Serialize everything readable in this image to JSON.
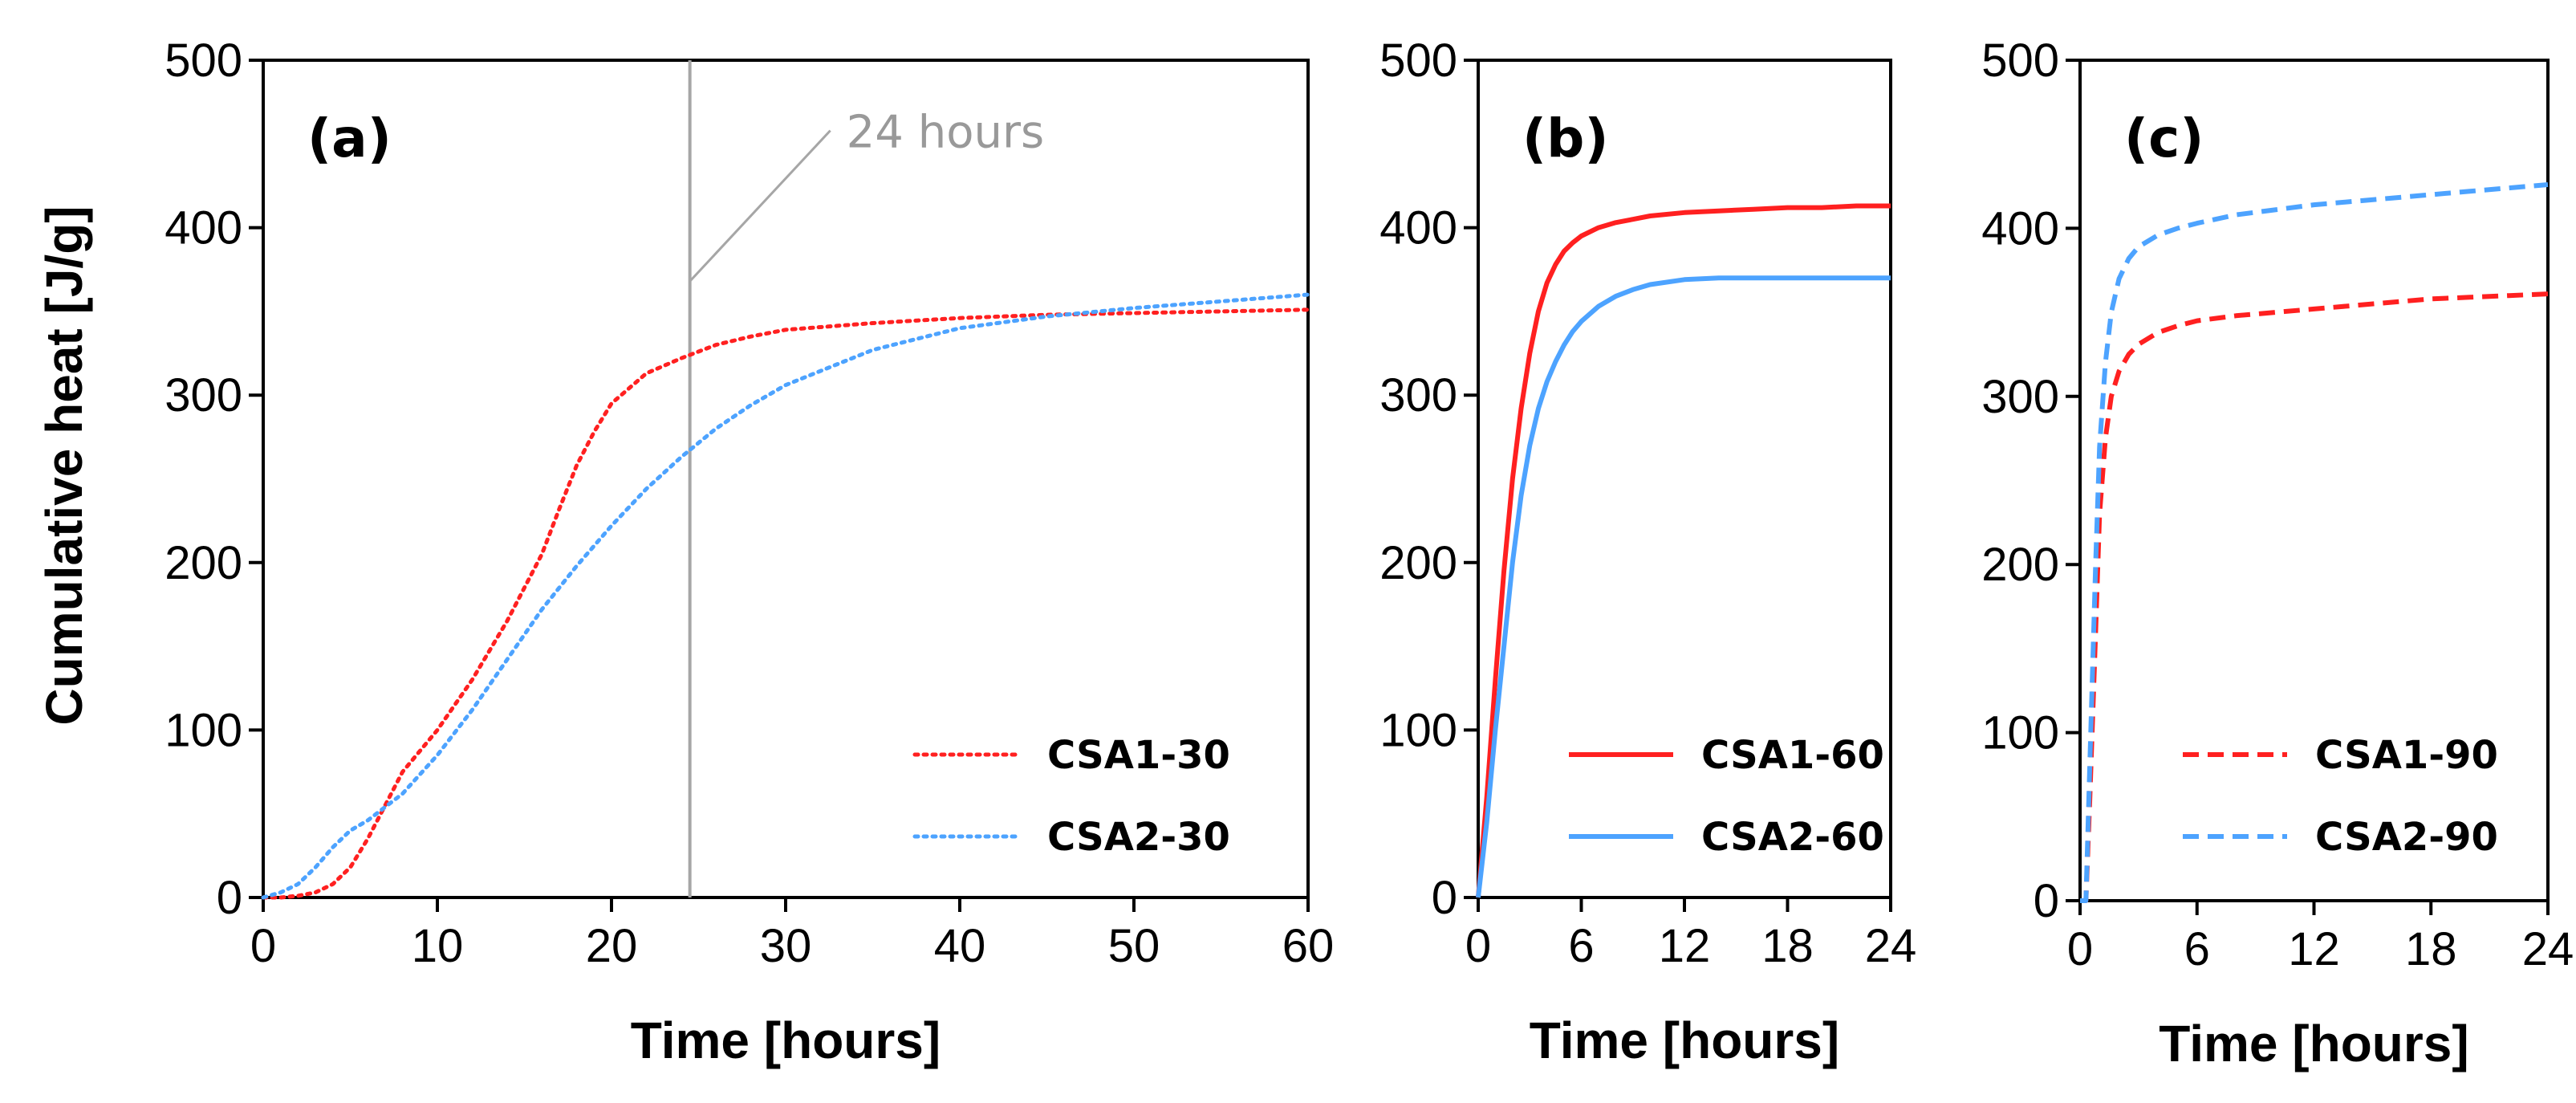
{
  "figure": {
    "ylabel": "Cumulative heat [J/g]"
  },
  "chart_data": [
    {
      "panel": "(a)",
      "type": "line",
      "xlabel": "Time [hours]",
      "ylabel": "Cumulative heat [J/g]",
      "xlim": [
        0,
        60
      ],
      "ylim": [
        0,
        500
      ],
      "xticks": [
        "0",
        "10",
        "20",
        "30",
        "40",
        "50",
        "60"
      ],
      "yticks": [
        "0",
        "100",
        "200",
        "300",
        "400",
        "500"
      ],
      "legend_position": "bottom-right",
      "annotation": {
        "text": "24 hours",
        "x": 24.5
      },
      "series": [
        {
          "name": "CSA1-30",
          "color": "#ff2020",
          "style": "dotted",
          "x": [
            0,
            1,
            2,
            3,
            4,
            5,
            6,
            7,
            8,
            10,
            12,
            14,
            16,
            17,
            18,
            19,
            20,
            22,
            24,
            26,
            28,
            30,
            35,
            40,
            45,
            50,
            55,
            60
          ],
          "y": [
            0,
            0,
            1,
            3,
            8,
            18,
            35,
            55,
            75,
            100,
            130,
            165,
            205,
            232,
            258,
            278,
            295,
            313,
            322,
            330,
            335,
            339,
            343,
            346,
            348,
            349,
            350,
            351
          ]
        },
        {
          "name": "CSA2-30",
          "color": "#4da3ff",
          "style": "dotted",
          "x": [
            0,
            1,
            2,
            3,
            4,
            5,
            6,
            8,
            10,
            12,
            14,
            16,
            18,
            20,
            22,
            24,
            26,
            28,
            30,
            35,
            40,
            45,
            50,
            55,
            60
          ],
          "y": [
            0,
            3,
            8,
            18,
            30,
            40,
            46,
            62,
            85,
            112,
            142,
            172,
            198,
            222,
            244,
            263,
            280,
            294,
            306,
            327,
            340,
            347,
            352,
            356,
            360
          ]
        }
      ]
    },
    {
      "panel": "(b)",
      "type": "line",
      "xlabel": "Time [hours]",
      "xlim": [
        0,
        24
      ],
      "ylim": [
        0,
        500
      ],
      "xticks": [
        "0",
        "6",
        "12",
        "18",
        "24"
      ],
      "yticks": [
        "0",
        "100",
        "200",
        "300",
        "400",
        "500"
      ],
      "legend_position": "bottom-right",
      "series": [
        {
          "name": "CSA1-60",
          "color": "#ff2020",
          "style": "solid",
          "x": [
            0,
            0.5,
            1,
            1.5,
            2,
            2.5,
            3,
            3.5,
            4,
            4.5,
            5,
            5.5,
            6,
            7,
            8,
            9,
            10,
            12,
            14,
            16,
            18,
            20,
            22,
            24
          ],
          "y": [
            0,
            60,
            130,
            195,
            250,
            292,
            325,
            350,
            367,
            378,
            386,
            391,
            395,
            400,
            403,
            405,
            407,
            409,
            410,
            411,
            412,
            412,
            413,
            413
          ]
        },
        {
          "name": "CSA2-60",
          "color": "#4da3ff",
          "style": "solid",
          "x": [
            0,
            0.5,
            1,
            1.5,
            2,
            2.5,
            3,
            3.5,
            4,
            4.5,
            5,
            5.5,
            6,
            7,
            8,
            9,
            10,
            12,
            14,
            16,
            18,
            20,
            22,
            24
          ],
          "y": [
            0,
            45,
            100,
            150,
            200,
            240,
            270,
            292,
            308,
            320,
            330,
            338,
            344,
            353,
            359,
            363,
            366,
            369,
            370,
            370,
            370,
            370,
            370,
            370
          ]
        }
      ]
    },
    {
      "panel": "(c)",
      "type": "line",
      "xlabel": "Time [hours]",
      "xlim": [
        0,
        24
      ],
      "ylim": [
        0,
        500
      ],
      "xticks": [
        "0",
        "6",
        "12",
        "18",
        "24"
      ],
      "yticks": [
        "0",
        "100",
        "200",
        "300",
        "400",
        "500"
      ],
      "legend_position": "bottom-right",
      "series": [
        {
          "name": "CSA1-90",
          "color": "#ff2020",
          "style": "dashed",
          "x": [
            0,
            0.3,
            0.5,
            0.8,
            1.0,
            1.3,
            1.6,
            2.0,
            2.5,
            3,
            4,
            5,
            6,
            8,
            10,
            12,
            14,
            16,
            18,
            20,
            22,
            24
          ],
          "y": [
            0,
            0,
            60,
            160,
            230,
            275,
            300,
            315,
            325,
            331,
            338,
            342,
            345,
            348,
            350,
            352,
            354,
            356,
            358,
            359,
            360,
            361
          ]
        },
        {
          "name": "CSA2-90",
          "color": "#4da3ff",
          "style": "dashed",
          "x": [
            0,
            0.3,
            0.5,
            0.8,
            1.0,
            1.3,
            1.6,
            2.0,
            2.5,
            3,
            4,
            5,
            6,
            8,
            10,
            12,
            14,
            16,
            18,
            20,
            22,
            24
          ],
          "y": [
            0,
            0,
            80,
            200,
            270,
            320,
            350,
            370,
            382,
            389,
            396,
            400,
            403,
            408,
            411,
            414,
            416,
            418,
            420,
            422,
            424,
            426
          ]
        }
      ]
    }
  ]
}
